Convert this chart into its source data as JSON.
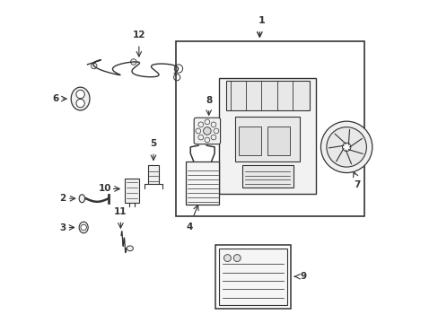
{
  "bg_color": "#ffffff",
  "line_color": "#333333",
  "figsize": [
    4.89,
    3.6
  ],
  "dpi": 100
}
